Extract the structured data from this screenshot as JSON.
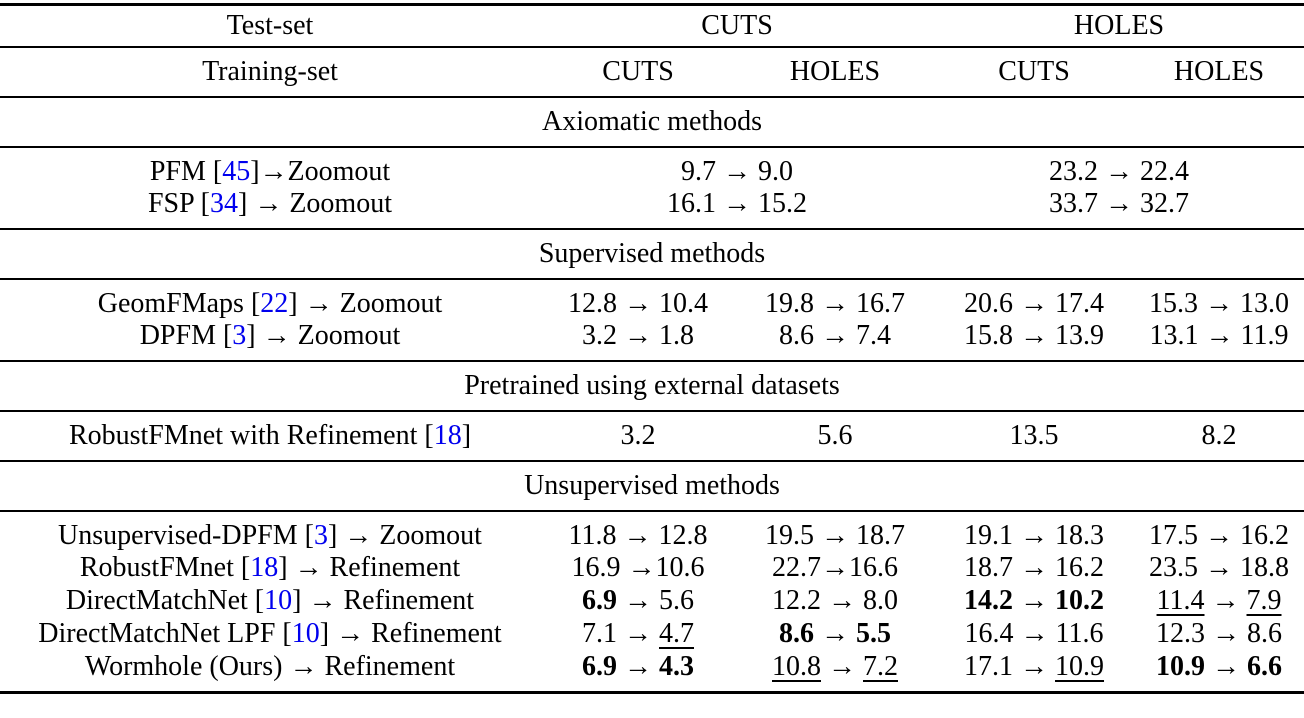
{
  "colors": {
    "citation_blue": "#0000EE",
    "text": "#000000",
    "background": "#ffffff"
  },
  "table": {
    "header_row1": {
      "label": "Test-set",
      "groups": [
        "CUTS",
        "HOLES"
      ]
    },
    "header_row2": {
      "label": "Training-set",
      "columns": [
        "CUTS",
        "HOLES",
        "CUTS",
        "HOLES"
      ]
    },
    "sections": [
      {
        "title": "Axiomatic methods",
        "span": 2,
        "rows": [
          {
            "label": [
              {
                "t": "PFM ["
              },
              {
                "t": "45",
                "cite": true
              },
              {
                "t": "]→Zoomout"
              }
            ],
            "cells": [
              [
                {
                  "t": "9.7 → 9.0"
                }
              ],
              [
                {
                  "t": "23.2 → 22.4"
                }
              ]
            ]
          },
          {
            "label": [
              {
                "t": "FSP ["
              },
              {
                "t": "34",
                "cite": true
              },
              {
                "t": "] → Zoomout"
              }
            ],
            "cells": [
              [
                {
                  "t": "16.1 → 15.2"
                }
              ],
              [
                {
                  "t": "33.7 → 32.7"
                }
              ]
            ]
          }
        ]
      },
      {
        "title": "Supervised methods",
        "span": 1,
        "rows": [
          {
            "label": [
              {
                "t": "GeomFMaps ["
              },
              {
                "t": "22",
                "cite": true
              },
              {
                "t": "] → Zoomout"
              }
            ],
            "cells": [
              [
                {
                  "t": "12.8 → 10.4"
                }
              ],
              [
                {
                  "t": "19.8 → 16.7"
                }
              ],
              [
                {
                  "t": "20.6 → 17.4"
                }
              ],
              [
                {
                  "t": "15.3 → 13.0"
                }
              ]
            ]
          },
          {
            "label": [
              {
                "t": "DPFM ["
              },
              {
                "t": "3",
                "cite": true
              },
              {
                "t": "] → Zoomout"
              }
            ],
            "cells": [
              [
                {
                  "t": "3.2 → 1.8"
                }
              ],
              [
                {
                  "t": "8.6 → 7.4"
                }
              ],
              [
                {
                  "t": "15.8 → 13.9"
                }
              ],
              [
                {
                  "t": "13.1 → 11.9"
                }
              ]
            ]
          }
        ]
      },
      {
        "title": "Pretrained using external datasets",
        "span": 1,
        "rows": [
          {
            "label": [
              {
                "t": "RobustFMnet with Refinement ["
              },
              {
                "t": "18",
                "cite": true
              },
              {
                "t": "]"
              }
            ],
            "cells": [
              [
                {
                  "t": "3.2"
                }
              ],
              [
                {
                  "t": "5.6"
                }
              ],
              [
                {
                  "t": "13.5"
                }
              ],
              [
                {
                  "t": "8.2"
                }
              ]
            ]
          }
        ]
      },
      {
        "title": "Unsupervised methods",
        "span": 1,
        "rows": [
          {
            "label": [
              {
                "t": "Unsupervised-DPFM ["
              },
              {
                "t": "3",
                "cite": true
              },
              {
                "t": "] → Zoomout"
              }
            ],
            "cells": [
              [
                {
                  "t": "11.8 → 12.8"
                }
              ],
              [
                {
                  "t": "19.5 → 18.7"
                }
              ],
              [
                {
                  "t": "19.1 → 18.3"
                }
              ],
              [
                {
                  "t": "17.5 → 16.2"
                }
              ]
            ]
          },
          {
            "label": [
              {
                "t": "RobustFMnet ["
              },
              {
                "t": "18",
                "cite": true
              },
              {
                "t": "] → Refinement"
              }
            ],
            "cells": [
              [
                {
                  "t": "16.9 →10.6"
                }
              ],
              [
                {
                  "t": "22.7→16.6"
                }
              ],
              [
                {
                  "t": "18.7 → 16.2"
                }
              ],
              [
                {
                  "t": "23.5 → 18.8"
                }
              ]
            ]
          },
          {
            "label": [
              {
                "t": "DirectMatchNet ["
              },
              {
                "t": "10",
                "cite": true
              },
              {
                "t": "] → Refinement"
              }
            ],
            "cells": [
              [
                {
                  "t": "6.9",
                  "b": true
                },
                {
                  "t": " → 5.6"
                }
              ],
              [
                {
                  "t": "12.2 → 8.0"
                }
              ],
              [
                {
                  "t": "14.2",
                  "b": true
                },
                {
                  "t": " → "
                },
                {
                  "t": "10.2",
                  "b": true
                }
              ],
              [
                {
                  "t": "11.4",
                  "u": true
                },
                {
                  "t": " → "
                },
                {
                  "t": "7.9",
                  "u": true
                }
              ]
            ]
          },
          {
            "label": [
              {
                "t": "DirectMatchNet LPF ["
              },
              {
                "t": "10",
                "cite": true
              },
              {
                "t": "] → Refinement"
              }
            ],
            "cells": [
              [
                {
                  "t": "7.1 → "
                },
                {
                  "t": "4.7",
                  "u": true
                }
              ],
              [
                {
                  "t": "8.6",
                  "b": true
                },
                {
                  "t": " → "
                },
                {
                  "t": "5.5",
                  "b": true
                }
              ],
              [
                {
                  "t": "16.4 → 11.6"
                }
              ],
              [
                {
                  "t": "12.3 → 8.6"
                }
              ]
            ]
          },
          {
            "label": [
              {
                "t": "Wormhole (Ours) → Refinement"
              }
            ],
            "cells": [
              [
                {
                  "t": "6.9",
                  "b": true
                },
                {
                  "t": " → "
                },
                {
                  "t": "4.3",
                  "b": true
                }
              ],
              [
                {
                  "t": "10.8",
                  "u": true
                },
                {
                  "t": " → "
                },
                {
                  "t": "7.2",
                  "u": true
                }
              ],
              [
                {
                  "t": "17.1 → "
                },
                {
                  "t": "10.9",
                  "u": true
                }
              ],
              [
                {
                  "t": "10.9",
                  "b": true
                },
                {
                  "t": " → "
                },
                {
                  "t": "6.6",
                  "b": true
                }
              ]
            ]
          }
        ]
      }
    ]
  }
}
